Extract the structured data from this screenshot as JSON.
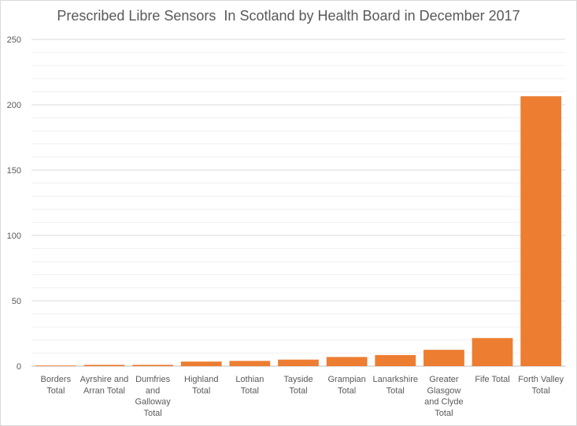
{
  "chart_data": {
    "type": "bar",
    "title": "Prescribed Libre Sensors  In Scotland by Health Board in December 2017",
    "xlabel": "",
    "ylabel": "",
    "ylim": [
      0,
      250
    ],
    "yticks": [
      0,
      50,
      100,
      150,
      200,
      250
    ],
    "grid": true,
    "legend": "none",
    "bar_color": "#ED7D31",
    "categories": [
      [
        "Borders",
        "Total"
      ],
      [
        "Ayrshire and",
        "Arran Total"
      ],
      [
        "Dumfries",
        "and",
        "Galloway",
        "Total"
      ],
      [
        "Highland",
        "Total"
      ],
      [
        "Lothian",
        "Total"
      ],
      [
        "Tayside",
        "Total"
      ],
      [
        "Grampian",
        "Total"
      ],
      [
        "Lanarkshire",
        "Total"
      ],
      [
        "Greater",
        "Glasgow",
        "and Clyde",
        "Total"
      ],
      [
        "Fife Total"
      ],
      [
        "Forth Valley",
        "Total"
      ]
    ],
    "values": [
      0.5,
      1,
      1,
      3.5,
      4,
      5,
      7,
      8.5,
      12.5,
      21.5,
      206.5
    ]
  }
}
